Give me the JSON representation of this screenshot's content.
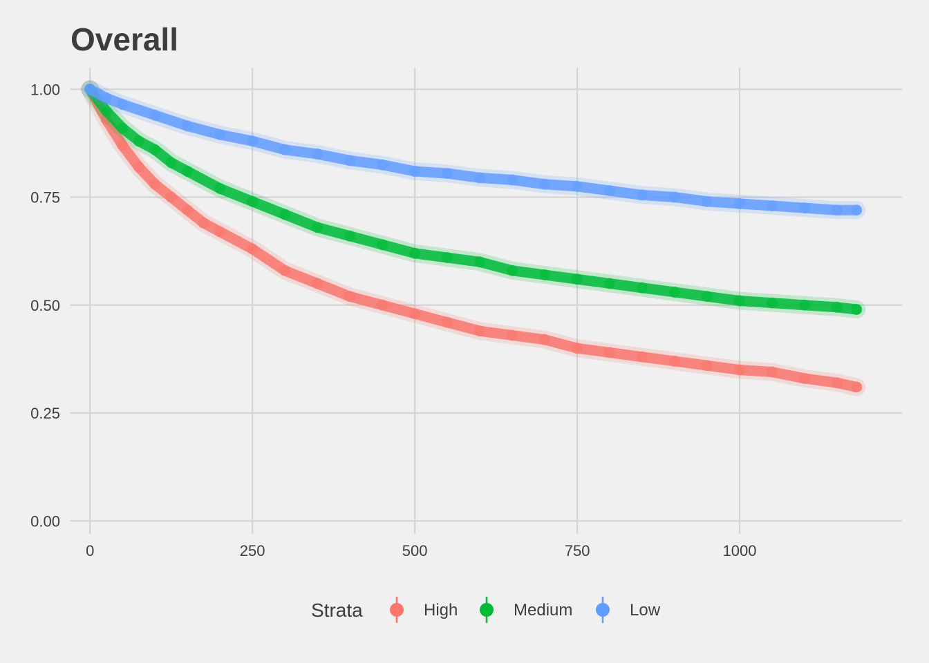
{
  "chart_data": {
    "type": "line",
    "title": "Overall",
    "xlabel": "",
    "ylabel": "",
    "xlim": [
      -30,
      1250
    ],
    "ylim": [
      -0.03,
      1.05
    ],
    "x_ticks": [
      0,
      250,
      500,
      750,
      1000
    ],
    "x_tick_labels": [
      "0",
      "250",
      "500",
      "750",
      "1000"
    ],
    "y_ticks": [
      0,
      0.25,
      0.5,
      0.75,
      1.0
    ],
    "y_tick_labels": [
      "0.00",
      "0.25",
      "0.50",
      "0.75",
      "1.00"
    ],
    "grid": true,
    "legend": {
      "title": "Strata",
      "position": "bottom"
    },
    "series": [
      {
        "name": "High",
        "color": "#f8766d",
        "x": [
          0,
          25,
          50,
          75,
          100,
          125,
          150,
          175,
          200,
          250,
          300,
          350,
          400,
          450,
          500,
          550,
          600,
          650,
          700,
          750,
          800,
          850,
          900,
          950,
          1000,
          1050,
          1100,
          1150,
          1180
        ],
        "y": [
          1.0,
          0.93,
          0.87,
          0.82,
          0.78,
          0.75,
          0.72,
          0.69,
          0.67,
          0.63,
          0.58,
          0.55,
          0.52,
          0.5,
          0.48,
          0.46,
          0.44,
          0.43,
          0.42,
          0.4,
          0.39,
          0.38,
          0.37,
          0.36,
          0.35,
          0.345,
          0.33,
          0.32,
          0.31
        ]
      },
      {
        "name": "Medium",
        "color": "#00ba38",
        "x": [
          0,
          25,
          50,
          75,
          100,
          125,
          150,
          200,
          250,
          300,
          350,
          400,
          450,
          500,
          550,
          600,
          650,
          700,
          750,
          800,
          850,
          900,
          950,
          1000,
          1050,
          1100,
          1150,
          1180
        ],
        "y": [
          1.0,
          0.95,
          0.91,
          0.88,
          0.86,
          0.83,
          0.81,
          0.77,
          0.74,
          0.71,
          0.68,
          0.66,
          0.64,
          0.62,
          0.61,
          0.6,
          0.58,
          0.57,
          0.56,
          0.55,
          0.54,
          0.53,
          0.52,
          0.51,
          0.505,
          0.5,
          0.495,
          0.49
        ]
      },
      {
        "name": "Low",
        "color": "#619cff",
        "x": [
          0,
          25,
          50,
          100,
          150,
          200,
          250,
          300,
          350,
          400,
          450,
          500,
          550,
          600,
          650,
          700,
          750,
          800,
          850,
          900,
          950,
          1000,
          1050,
          1100,
          1150,
          1180
        ],
        "y": [
          1.0,
          0.98,
          0.965,
          0.94,
          0.915,
          0.895,
          0.88,
          0.86,
          0.85,
          0.835,
          0.825,
          0.81,
          0.805,
          0.795,
          0.79,
          0.78,
          0.775,
          0.765,
          0.755,
          0.75,
          0.74,
          0.735,
          0.73,
          0.725,
          0.72,
          0.72
        ]
      }
    ]
  }
}
